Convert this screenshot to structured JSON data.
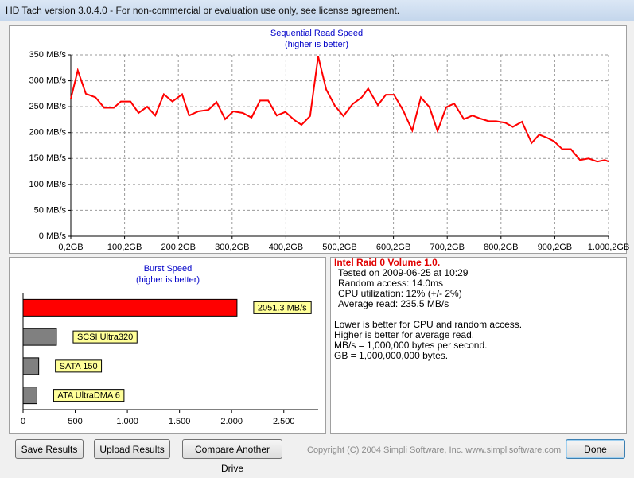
{
  "window": {
    "title": "HD Tach version 3.0.4.0  - For non-commercial or evaluation use only, see license agreement."
  },
  "chart_data": [
    {
      "type": "line",
      "title": "Sequential Read Speed",
      "subtitle": "(higher is better)",
      "color": "#ff0000",
      "grid": true,
      "x": [
        0,
        13,
        28,
        46,
        62,
        80,
        93,
        111,
        126,
        142,
        157,
        173,
        189,
        207,
        220,
        237,
        256,
        271,
        287,
        302,
        320,
        336,
        352,
        367,
        383,
        399,
        416,
        429,
        445,
        460,
        475,
        491,
        507,
        524,
        541,
        553,
        571,
        586,
        601,
        618,
        635,
        651,
        667,
        682,
        698,
        713,
        731,
        747,
        762,
        777,
        791,
        808,
        822,
        839,
        857,
        871,
        886,
        899,
        914,
        930,
        947,
        963,
        979,
        993,
        1000
      ],
      "values": [
        265,
        320,
        275,
        268,
        248,
        248,
        260,
        260,
        238,
        250,
        233,
        274,
        260,
        274,
        233,
        241,
        244,
        259,
        226,
        241,
        238,
        229,
        262,
        262,
        233,
        240,
        224,
        215,
        232,
        347,
        283,
        252,
        232,
        255,
        268,
        285,
        253,
        273,
        273,
        243,
        204,
        268,
        249,
        203,
        249,
        256,
        226,
        233,
        227,
        222,
        222,
        219,
        211,
        221,
        180,
        196,
        190,
        183,
        168,
        168,
        147,
        150,
        144,
        147,
        144
      ],
      "xlim": [
        0,
        1000
      ],
      "xticks": [
        {
          "value": 0,
          "label": "0,2GB"
        },
        {
          "value": 100,
          "label": "100,2GB"
        },
        {
          "value": 200,
          "label": "200,2GB"
        },
        {
          "value": 300,
          "label": "300,2GB"
        },
        {
          "value": 400,
          "label": "400,2GB"
        },
        {
          "value": 500,
          "label": "500,2GB"
        },
        {
          "value": 600,
          "label": "600,2GB"
        },
        {
          "value": 700,
          "label": "700,2GB"
        },
        {
          "value": 800,
          "label": "800,2GB"
        },
        {
          "value": 900,
          "label": "900,2GB"
        },
        {
          "value": 1000,
          "label": "1.000,2GB"
        }
      ],
      "ylim": [
        0,
        350
      ],
      "yticks": [
        {
          "value": 0,
          "label": "0 MB/s"
        },
        {
          "value": 50,
          "label": "50 MB/s"
        },
        {
          "value": 100,
          "label": "100 MB/s"
        },
        {
          "value": 150,
          "label": "150 MB/s"
        },
        {
          "value": 200,
          "label": "200 MB/s"
        },
        {
          "value": 250,
          "label": "250 MB/s"
        },
        {
          "value": 300,
          "label": "300 MB/s"
        },
        {
          "value": 350,
          "label": "350 MB/s"
        }
      ]
    },
    {
      "type": "hbar",
      "title": "Burst Speed",
      "subtitle": "(higher is better)",
      "categories": [
        null,
        "SCSI Ultra320",
        "SATA 150",
        "ATA UltraDMA 6"
      ],
      "values": [
        2051.3,
        320,
        150,
        133
      ],
      "value_labels": [
        "2051.3 MB/s",
        null,
        null,
        null
      ],
      "colors": [
        "#ff0000",
        "#808080",
        "#808080",
        "#808080"
      ],
      "xlim": [
        0,
        2830
      ],
      "xticks": [
        0,
        500,
        {
          "value": 1000,
          "label": "1.000"
        },
        {
          "value": 1500,
          "label": "1.500"
        },
        {
          "value": 2000,
          "label": "2.000"
        },
        {
          "value": 2500,
          "label": "2.500"
        }
      ]
    }
  ],
  "info": {
    "heading": "Intel Raid 0 Volume 1.0.",
    "lines": [
      "Tested on 2009-06-25 at 10:29",
      "Random access: 14.0ms",
      "CPU utilization: 12% (+/- 2%)",
      "Average read: 235.5 MB/s"
    ],
    "notes": [
      "Lower is better for CPU and random access.",
      "Higher is better for average read.",
      "MB/s = 1,000,000 bytes per second.",
      "GB = 1,000,000,000 bytes."
    ]
  },
  "buttons": [
    "Save Results",
    "Upload Results",
    "Compare Another Drive",
    "Done"
  ],
  "copyright": "Copyright (C) 2004 Simpli Software, Inc. www.simplisoftware.com"
}
